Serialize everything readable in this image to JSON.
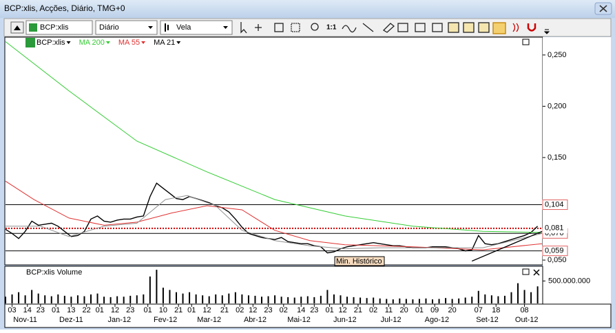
{
  "window": {
    "title": "BCP:xlis, Acções, Diário, TMG+0"
  },
  "toolbar": {
    "symbol": "BCP:xlis",
    "period": "Diário",
    "style": "Vela",
    "zoom": "1:1"
  },
  "chart_data": {
    "type": "line",
    "xlim": [
      0,
      245
    ],
    "ylim": [
      0.046,
      0.2667
    ],
    "yticks": [
      {
        "value": 0.25,
        "label": "0,250"
      },
      {
        "value": 0.2,
        "label": "0,200"
      },
      {
        "value": 0.15,
        "label": "0,150"
      },
      {
        "value": 0.05,
        "label": "0,050"
      }
    ],
    "xticks": [
      {
        "value": 3,
        "label": "03"
      },
      {
        "value": 10,
        "label": "14"
      },
      {
        "value": 16,
        "label": "23"
      },
      {
        "value": 23,
        "label": "01"
      },
      {
        "value": 30,
        "label": "13"
      },
      {
        "value": 37,
        "label": "22"
      },
      {
        "value": 43,
        "label": "01"
      },
      {
        "value": 50,
        "label": "12"
      },
      {
        "value": 57,
        "label": "23"
      },
      {
        "value": 65,
        "label": "01"
      },
      {
        "value": 72,
        "label": "10"
      },
      {
        "value": 79,
        "label": "21"
      },
      {
        "value": 85,
        "label": "01"
      },
      {
        "value": 92,
        "label": "12"
      },
      {
        "value": 100,
        "label": "21"
      },
      {
        "value": 107,
        "label": "02"
      },
      {
        "value": 113,
        "label": "12"
      },
      {
        "value": 120,
        "label": "23"
      },
      {
        "value": 127,
        "label": "02"
      },
      {
        "value": 135,
        "label": "14"
      },
      {
        "value": 141,
        "label": "23"
      },
      {
        "value": 148,
        "label": "01"
      },
      {
        "value": 154,
        "label": "12"
      },
      {
        "value": 161,
        "label": "21"
      },
      {
        "value": 168,
        "label": "02"
      },
      {
        "value": 175,
        "label": "11"
      },
      {
        "value": 182,
        "label": "20"
      },
      {
        "value": 189,
        "label": "01"
      },
      {
        "value": 196,
        "label": "09"
      },
      {
        "value": 204,
        "label": "20"
      },
      {
        "value": 216,
        "label": "07"
      },
      {
        "value": 224,
        "label": "18"
      },
      {
        "value": 237,
        "label": "08"
      }
    ],
    "months": [
      {
        "value": 9,
        "label": "Nov-11"
      },
      {
        "value": 30,
        "label": "Dez-11"
      },
      {
        "value": 52,
        "label": "Jan-12"
      },
      {
        "value": 73,
        "label": "Fev-12"
      },
      {
        "value": 93,
        "label": "Mar-12"
      },
      {
        "value": 114,
        "label": "Abr-12"
      },
      {
        "value": 134,
        "label": "Mai-12"
      },
      {
        "value": 155,
        "label": "Jun-12"
      },
      {
        "value": 176,
        "label": "Jul-12"
      },
      {
        "value": 197,
        "label": "Ago-12"
      },
      {
        "value": 220,
        "label": "Set-12"
      },
      {
        "value": 238,
        "label": "Out-12"
      }
    ],
    "series": [
      {
        "name": "BCP:xlis",
        "color": "#000000",
        "x": [
          0,
          3,
          6,
          9,
          12,
          15,
          18,
          21,
          24,
          27,
          30,
          33,
          36,
          39,
          42,
          45,
          48,
          51,
          54,
          57,
          60,
          63,
          66,
          69,
          72,
          75,
          78,
          81,
          84,
          87,
          90,
          93,
          96,
          99,
          102,
          105,
          108,
          111,
          114,
          117,
          120,
          123,
          126,
          129,
          132,
          135,
          138,
          141,
          144,
          147,
          150,
          153,
          156,
          159,
          162,
          165,
          168,
          171,
          174,
          177,
          180,
          183,
          186,
          189,
          192,
          195,
          198,
          201,
          204,
          207,
          210,
          213,
          216,
          219,
          222,
          225,
          228,
          231,
          234,
          237,
          240,
          243
        ],
        "values": [
          0.08,
          0.076,
          0.071,
          0.078,
          0.088,
          0.084,
          0.085,
          0.086,
          0.083,
          0.078,
          0.073,
          0.074,
          0.078,
          0.09,
          0.093,
          0.088,
          0.087,
          0.089,
          0.09,
          0.09,
          0.092,
          0.093,
          0.112,
          0.125,
          0.12,
          0.115,
          0.11,
          0.109,
          0.112,
          0.11,
          0.108,
          0.106,
          0.103,
          0.101,
          0.097,
          0.09,
          0.082,
          0.076,
          0.074,
          0.072,
          0.071,
          0.07,
          0.072,
          0.068,
          0.067,
          0.066,
          0.066,
          0.064,
          0.063,
          0.057,
          0.058,
          0.061,
          0.063,
          0.064,
          0.065,
          0.066,
          0.067,
          0.066,
          0.065,
          0.064,
          0.064,
          0.063,
          0.062,
          0.062,
          0.062,
          0.063,
          0.063,
          0.063,
          0.062,
          0.061,
          0.059,
          0.06,
          0.074,
          0.066,
          0.065,
          0.066,
          0.068,
          0.07,
          0.072,
          0.074,
          0.077,
          0.083
        ]
      },
      {
        "name": "MA 200",
        "color": "#33cc33",
        "x": [
          0,
          29,
          60,
          92,
          123,
          155,
          186,
          218,
          245
        ],
        "values": [
          0.263,
          0.215,
          0.166,
          0.136,
          0.109,
          0.093,
          0.083,
          0.078,
          0.077
        ]
      },
      {
        "name": "MA 55",
        "color": "#e03030",
        "x": [
          0,
          13,
          29,
          45,
          60,
          76,
          92,
          108,
          123,
          139,
          155,
          186,
          218,
          245
        ],
        "values": [
          0.127,
          0.109,
          0.091,
          0.084,
          0.087,
          0.096,
          0.103,
          0.099,
          0.079,
          0.069,
          0.065,
          0.063,
          0.06,
          0.066
        ]
      },
      {
        "name": "MA 21",
        "color": "#909090",
        "x": [
          0,
          16,
          29,
          45,
          60,
          73,
          83,
          96,
          108,
          123,
          139,
          155,
          171,
          201,
          218,
          245
        ],
        "values": [
          0.083,
          0.083,
          0.073,
          0.083,
          0.086,
          0.109,
          0.113,
          0.103,
          0.079,
          0.069,
          0.064,
          0.061,
          0.062,
          0.062,
          0.062,
          0.076
        ]
      }
    ],
    "levels": [
      {
        "value": 0.104,
        "label": "0,104",
        "color": "#000000",
        "style": "solid"
      },
      {
        "value": 0.076,
        "label": "0,076",
        "color": "#000000",
        "style": "solid"
      },
      {
        "value": 0.059,
        "label": "0,059",
        "color": "#000000",
        "style": "solid"
      },
      {
        "value": 0.081,
        "label": "0,081",
        "color": "#cc0000",
        "style": "dotted"
      }
    ],
    "trendline": {
      "x": [
        213,
        245
      ],
      "y": [
        0.049,
        0.078
      ],
      "color": "#000000"
    },
    "annotation": "Min. Histórico",
    "volume": {
      "title": "BCP:xlis Volume",
      "color": "#000000",
      "ylim": [
        0,
        812500000
      ],
      "yticks": [
        {
          "value": 500000000,
          "label": "500.000.000"
        }
      ],
      "values": [
        150000000,
        200000000,
        250000000,
        180000000,
        300000000,
        220000000,
        180000000,
        160000000,
        200000000,
        170000000,
        150000000,
        180000000,
        160000000,
        200000000,
        220000000,
        150000000,
        140000000,
        160000000,
        150000000,
        170000000,
        180000000,
        200000000,
        600000000,
        750000000,
        350000000,
        300000000,
        250000000,
        220000000,
        250000000,
        200000000,
        180000000,
        160000000,
        200000000,
        180000000,
        220000000,
        250000000,
        200000000,
        180000000,
        170000000,
        150000000,
        160000000,
        180000000,
        150000000,
        140000000,
        130000000,
        150000000,
        160000000,
        140000000,
        170000000,
        300000000,
        200000000,
        180000000,
        150000000,
        140000000,
        130000000,
        120000000,
        130000000,
        110000000,
        100000000,
        90000000,
        110000000,
        100000000,
        90000000,
        100000000,
        110000000,
        90000000,
        100000000,
        120000000,
        100000000,
        110000000,
        130000000,
        150000000,
        280000000,
        200000000,
        180000000,
        160000000,
        170000000,
        250000000,
        450000000,
        300000000,
        250000000,
        380000000
      ]
    }
  }
}
